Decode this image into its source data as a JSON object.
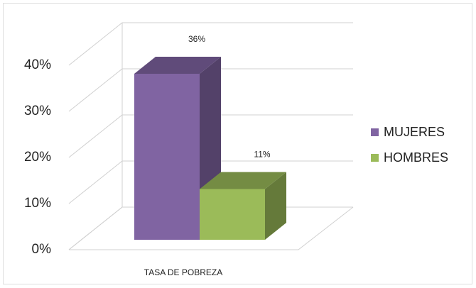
{
  "chart_data": {
    "type": "bar3d",
    "categories": [
      "TASA DE POBREZA"
    ],
    "series": [
      {
        "name": "MUJERES",
        "color": "#8064a2",
        "values": [
          36
        ],
        "value_labels": [
          "36%"
        ]
      },
      {
        "name": "HOMBRES",
        "color": "#9bbb59",
        "values": [
          11
        ],
        "value_labels": [
          "11%"
        ]
      }
    ],
    "ylim": [
      0,
      40
    ],
    "yticks": [
      {
        "value": 0,
        "label": "0%"
      },
      {
        "value": 10,
        "label": "10%"
      },
      {
        "value": 20,
        "label": "20%"
      },
      {
        "value": 30,
        "label": "30%"
      },
      {
        "value": 40,
        "label": "40%"
      }
    ],
    "grid": true,
    "legend": "right"
  }
}
